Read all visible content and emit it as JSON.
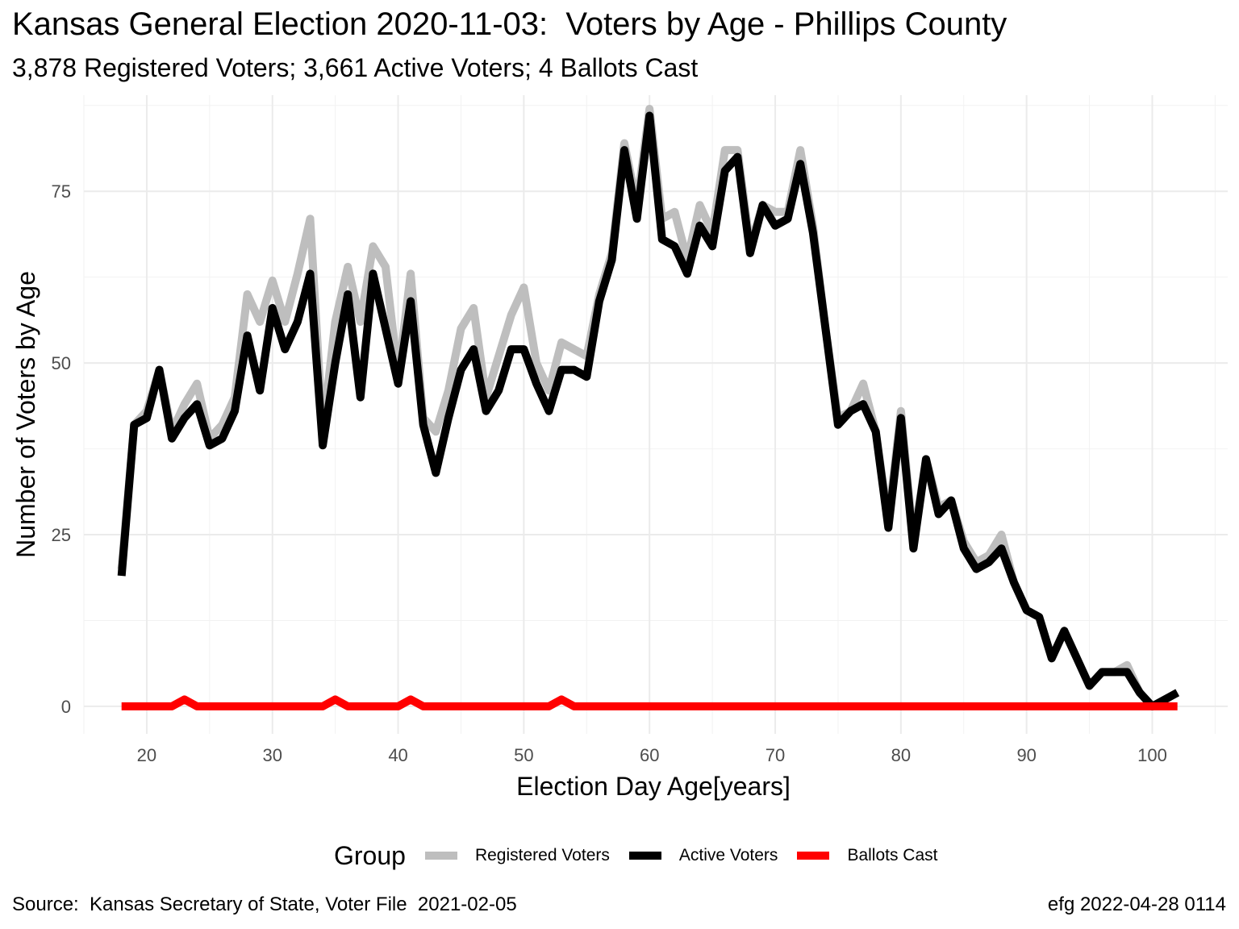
{
  "title": "Kansas General Election 2020-11-03:  Voters by Age - Phillips County",
  "subtitle": "3,878 Registered Voters; 3,661 Active Voters; 4 Ballots Cast",
  "caption_left": "Source:  Kansas Secretary of State, Voter File  2021-02-05",
  "caption_right": "efg 2022-04-28 0114",
  "legend": {
    "title": "Group",
    "items": [
      {
        "label": "Registered Voters",
        "color": "#bebebe"
      },
      {
        "label": "Active Voters",
        "color": "#000000"
      },
      {
        "label": "Ballots Cast",
        "color": "#ff0000"
      }
    ]
  },
  "chart_data": {
    "type": "line",
    "xlabel": "Election Day Age[years]",
    "ylabel": "Number of Voters by Age",
    "xlim": [
      15,
      106
    ],
    "ylim": [
      -4,
      89
    ],
    "x_ticks": [
      20,
      30,
      40,
      50,
      60,
      70,
      80,
      90,
      100
    ],
    "y_ticks": [
      0,
      25,
      50,
      75
    ],
    "grid": true,
    "legend_position": "bottom",
    "x": [
      18,
      19,
      20,
      21,
      22,
      23,
      24,
      25,
      26,
      27,
      28,
      29,
      30,
      31,
      32,
      33,
      34,
      35,
      36,
      37,
      38,
      39,
      40,
      41,
      42,
      43,
      44,
      45,
      46,
      47,
      48,
      49,
      50,
      51,
      52,
      53,
      54,
      55,
      56,
      57,
      58,
      59,
      60,
      61,
      62,
      63,
      64,
      65,
      66,
      67,
      68,
      69,
      70,
      71,
      72,
      73,
      74,
      75,
      76,
      77,
      78,
      79,
      80,
      81,
      82,
      83,
      84,
      85,
      86,
      87,
      88,
      89,
      90,
      91,
      92,
      93,
      94,
      95,
      96,
      97,
      98,
      99,
      100,
      101,
      102
    ],
    "series": [
      {
        "name": "Registered Voters",
        "color": "#bebebe",
        "values": [
          20,
          41,
          43,
          49,
          40,
          44,
          47,
          39,
          41,
          45,
          60,
          56,
          62,
          56,
          63,
          71,
          40,
          56,
          64,
          56,
          67,
          64,
          48,
          63,
          42,
          40,
          46,
          55,
          58,
          45,
          51,
          57,
          61,
          50,
          46,
          53,
          52,
          51,
          60,
          66,
          82,
          73,
          87,
          71,
          72,
          65,
          73,
          69,
          81,
          81,
          67,
          73,
          72,
          72,
          81,
          70,
          55,
          42,
          43,
          47,
          40,
          27,
          43,
          24,
          36,
          29,
          30,
          24,
          21,
          22,
          25,
          18,
          14,
          13,
          7,
          11,
          7,
          3,
          5,
          5,
          6,
          2,
          0,
          1,
          2
        ]
      },
      {
        "name": "Active Voters",
        "color": "#000000",
        "values": [
          19,
          41,
          42,
          49,
          39,
          42,
          44,
          38,
          39,
          43,
          54,
          46,
          58,
          52,
          56,
          63,
          38,
          50,
          60,
          45,
          63,
          55,
          47,
          59,
          41,
          34,
          42,
          49,
          52,
          43,
          46,
          52,
          52,
          47,
          43,
          49,
          49,
          48,
          59,
          65,
          81,
          71,
          86,
          68,
          67,
          63,
          70,
          67,
          78,
          80,
          66,
          73,
          70,
          71,
          79,
          69,
          55,
          41,
          43,
          44,
          40,
          26,
          42,
          23,
          36,
          28,
          30,
          23,
          20,
          21,
          23,
          18,
          14,
          13,
          7,
          11,
          7,
          3,
          5,
          5,
          5,
          2,
          0,
          1,
          2
        ]
      },
      {
        "name": "Ballots Cast",
        "color": "#ff0000",
        "values": [
          0,
          0,
          0,
          0,
          0,
          1,
          0,
          0,
          0,
          0,
          0,
          0,
          0,
          0,
          0,
          0,
          0,
          1,
          0,
          0,
          0,
          0,
          0,
          1,
          0,
          0,
          0,
          0,
          0,
          0,
          0,
          0,
          0,
          0,
          0,
          1,
          0,
          0,
          0,
          0,
          0,
          0,
          0,
          0,
          0,
          0,
          0,
          0,
          0,
          0,
          0,
          0,
          0,
          0,
          0,
          0,
          0,
          0,
          0,
          0,
          0,
          0,
          0,
          0,
          0,
          0,
          0,
          0,
          0,
          0,
          0,
          0,
          0,
          0,
          0,
          0,
          0,
          0,
          0,
          0,
          0,
          0,
          0,
          0,
          0
        ]
      }
    ]
  }
}
